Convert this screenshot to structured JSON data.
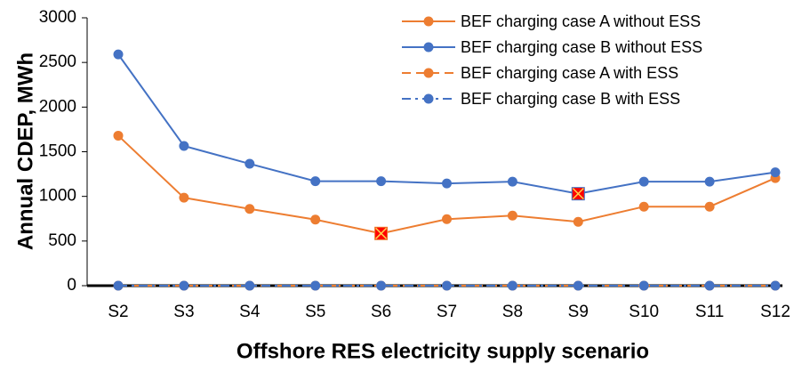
{
  "chart_data": {
    "type": "line",
    "x_label": "Offshore RES electricity supply scenario",
    "y_label": "Annual CDEP, MWh",
    "categories": [
      "S2",
      "S3",
      "S4",
      "S5",
      "S6",
      "S7",
      "S8",
      "S9",
      "S10",
      "S11",
      "S12"
    ],
    "series": [
      {
        "name": "BEF charging case A without ESS",
        "color": "#ed7d31",
        "dash": "solid",
        "highlight": 4,
        "values": [
          1680,
          985,
          860,
          740,
          585,
          745,
          785,
          715,
          885,
          885,
          1205
        ]
      },
      {
        "name": "BEF charging case B without ESS",
        "color": "#4472c4",
        "dash": "solid",
        "highlight": 7,
        "values": [
          2590,
          1565,
          1365,
          1170,
          1170,
          1145,
          1165,
          1030,
          1165,
          1165,
          1270
        ]
      },
      {
        "name": "BEF charging case A with ESS",
        "color": "#ed7d31",
        "dash": "dashed",
        "values": [
          0,
          0,
          0,
          0,
          0,
          0,
          0,
          0,
          0,
          0,
          0
        ]
      },
      {
        "name": "BEF charging case B with ESS",
        "color": "#4472c4",
        "dash": "dashdot",
        "values": [
          0,
          0,
          0,
          0,
          0,
          0,
          0,
          0,
          0,
          0,
          0
        ]
      }
    ],
    "highlight_color": "#ff0000",
    "ylim": [
      0,
      3000
    ],
    "yticks": [
      0,
      500,
      1000,
      1500,
      2000,
      2500,
      3000
    ],
    "legend": "upper right"
  }
}
